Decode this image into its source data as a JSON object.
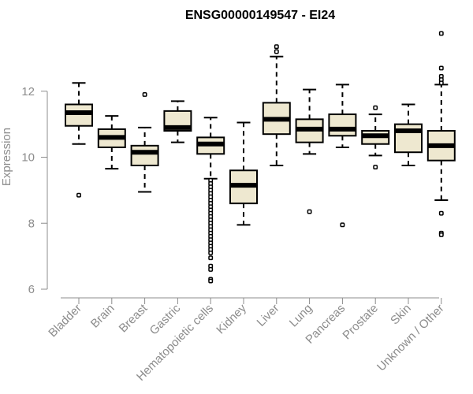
{
  "chart_data": {
    "type": "boxplot",
    "title": "ENSG00000149547 - EI24",
    "xlabel": "",
    "ylabel": "Expression",
    "ylim": [
      6,
      14
    ],
    "yticks": [
      6,
      8,
      10,
      12
    ],
    "box_fill": "#eee8d0",
    "series": [
      {
        "name": "Bladder",
        "whisker_low": 10.4,
        "q1": 10.95,
        "median": 11.35,
        "q3": 11.6,
        "whisker_high": 12.25,
        "outliers": [
          8.85
        ]
      },
      {
        "name": "Brain",
        "whisker_low": 9.65,
        "q1": 10.3,
        "median": 10.6,
        "q3": 10.85,
        "whisker_high": 11.25,
        "outliers": []
      },
      {
        "name": "Breast",
        "whisker_low": 8.95,
        "q1": 9.75,
        "median": 10.15,
        "q3": 10.35,
        "whisker_high": 10.9,
        "outliers": [
          11.9
        ]
      },
      {
        "name": "Gastric",
        "whisker_low": 10.45,
        "q1": 10.8,
        "median": 10.9,
        "q3": 11.4,
        "whisker_high": 11.7,
        "outliers": []
      },
      {
        "name": "Hematopoietic cells",
        "whisker_low": 9.35,
        "q1": 10.1,
        "median": 10.4,
        "q3": 10.6,
        "whisker_high": 11.2,
        "outliers": [
          9.3,
          9.2,
          9.1,
          9.0,
          8.9,
          8.8,
          8.7,
          8.6,
          8.5,
          8.4,
          8.3,
          8.2,
          8.1,
          8.0,
          7.9,
          7.8,
          7.7,
          7.6,
          7.5,
          7.4,
          7.3,
          7.2,
          7.1,
          6.95,
          6.7,
          6.6,
          6.3,
          6.25
        ]
      },
      {
        "name": "Kidney",
        "whisker_low": 7.95,
        "q1": 8.6,
        "median": 9.15,
        "q3": 9.6,
        "whisker_high": 11.05,
        "outliers": []
      },
      {
        "name": "Liver",
        "whisker_low": 9.75,
        "q1": 10.7,
        "median": 11.15,
        "q3": 11.65,
        "whisker_high": 13.05,
        "outliers": [
          13.2,
          13.35
        ]
      },
      {
        "name": "Lung",
        "whisker_low": 10.1,
        "q1": 10.45,
        "median": 10.85,
        "q3": 11.15,
        "whisker_high": 12.05,
        "outliers": [
          8.35
        ]
      },
      {
        "name": "Pancreas",
        "whisker_low": 10.3,
        "q1": 10.65,
        "median": 10.85,
        "q3": 11.3,
        "whisker_high": 12.2,
        "outliers": [
          7.95
        ]
      },
      {
        "name": "Prostate",
        "whisker_low": 10.05,
        "q1": 10.4,
        "median": 10.65,
        "q3": 10.8,
        "whisker_high": 11.3,
        "outliers": [
          11.5,
          9.7
        ]
      },
      {
        "name": "Skin",
        "whisker_low": 9.75,
        "q1": 10.15,
        "median": 10.8,
        "q3": 11.0,
        "whisker_high": 11.6,
        "outliers": []
      },
      {
        "name": "Unknown / Other",
        "whisker_low": 8.7,
        "q1": 9.9,
        "median": 10.35,
        "q3": 10.8,
        "whisker_high": 12.2,
        "outliers": [
          13.75,
          12.7,
          12.45,
          12.35,
          12.25,
          8.3,
          7.7,
          7.65
        ]
      }
    ]
  }
}
